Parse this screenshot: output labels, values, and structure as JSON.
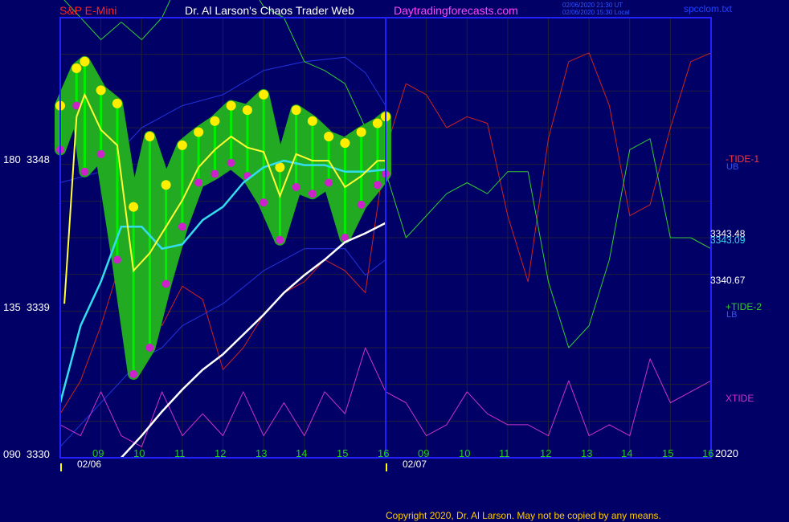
{
  "header": {
    "symbol": "S&P E-Mini",
    "title": "Dr. Al Larson's Chaos Trader Web",
    "site": "Daytradingforecasts.com",
    "stamp_ut": "02/06/2020 21:30 UT",
    "stamp_local": "02/06/2020 15:30 Local",
    "file": "spcclom.txt"
  },
  "y_axis": {
    "top": {
      "angle": "180",
      "price": "3348"
    },
    "mid": {
      "angle": "135",
      "price": "3339"
    },
    "bottom": {
      "angle": "090",
      "price": "3330"
    }
  },
  "right_labels": {
    "tide1": "-TIDE-1",
    "ub": "UB",
    "price1": "3343.48",
    "price2": "3343.09",
    "price3": "3340.67",
    "tide2": "+TIDE-2",
    "lb": "LB",
    "xtide": "XTIDE"
  },
  "x_axis": {
    "hours": [
      "09",
      "10",
      "11",
      "12",
      "13",
      "14",
      "15",
      "16",
      "09",
      "10",
      "11",
      "12",
      "13",
      "14",
      "15",
      "16"
    ],
    "dates": [
      "02/06",
      "02/07"
    ],
    "year": "2020"
  },
  "copyright": "Copyright 2020, Dr. Al Larson. May not be copied by any means.",
  "chart_data": {
    "type": "line",
    "x_unit": "hour",
    "x_range": [
      8,
      24
    ],
    "ylim": [
      3330,
      3350
    ],
    "y_ticks": [
      3330,
      3339,
      3348
    ],
    "grid": true,
    "colors": {
      "background": "#000066",
      "grid": "#1f1f3a",
      "frame": "#2222ff",
      "price_band": "#22aa22",
      "price_bars": "#00ee00",
      "highs": "#ffee00",
      "lows": "#cc22cc",
      "fast_avg": "#ffff33",
      "slow_avg": "#33ddee",
      "long_avg": "#ffffff",
      "tide1": "#cc2222",
      "tide2": "#33cc33",
      "xtide": "#cc33cc",
      "bands": "#2233dd"
    },
    "series": [
      {
        "name": "-TIDE-1",
        "x": [
          8.0,
          8.5,
          9.0,
          9.5,
          10.0,
          10.5,
          11.0,
          11.5,
          12.0,
          12.5,
          13.0,
          13.5,
          14.0,
          14.5,
          15.0,
          15.5,
          16.0,
          16.5,
          17.0,
          17.5,
          18.0,
          18.5,
          19.0,
          19.5,
          20.0,
          20.5,
          21.0,
          21.5,
          22.0,
          22.5,
          23.0,
          23.5,
          24.0
        ],
        "y": [
          3332,
          3333.5,
          3336,
          3339,
          3338,
          3336,
          3337.8,
          3337.2,
          3334,
          3335,
          3336.5,
          3337.5,
          3338,
          3339,
          3338.5,
          3337.5,
          3344,
          3347,
          3346.5,
          3345,
          3345.5,
          3345.2,
          3341,
          3338,
          3344.5,
          3348,
          3348.4,
          3346,
          3341,
          3341.5,
          3345,
          3348,
          3348.4
        ]
      },
      {
        "name": "+TIDE-2",
        "x": [
          8.0,
          8.5,
          9.0,
          9.5,
          10.0,
          10.5,
          11.0,
          11.5,
          12.0,
          12.5,
          13.0,
          13.5,
          14.0,
          14.5,
          15.0,
          15.5,
          16.0,
          16.5,
          17.0,
          17.5,
          18.0,
          18.5,
          19.0,
          19.5,
          20.0,
          20.5,
          21.0,
          21.5,
          22.0,
          22.5,
          23.0,
          23.5,
          24.0
        ],
        "y": [
          3351,
          3350,
          3349,
          3349.8,
          3349,
          3350,
          3352,
          3355,
          3354,
          3352,
          3350.5,
          3350,
          3348,
          3347.6,
          3347,
          3345,
          3343,
          3340,
          3341,
          3342,
          3342.5,
          3342,
          3343,
          3343,
          3338,
          3335,
          3336,
          3339,
          3344,
          3344.5,
          3340,
          3340,
          3339.5
        ]
      },
      {
        "name": "XTIDE",
        "x": [
          8.0,
          8.5,
          9.0,
          9.5,
          10.0,
          10.5,
          11.0,
          11.5,
          12.0,
          12.5,
          13.0,
          13.5,
          14.0,
          14.5,
          15.0,
          15.5,
          16.0,
          16.5,
          17.0,
          17.5,
          18.0,
          18.5,
          19.0,
          19.5,
          20.0,
          20.5,
          21.0,
          21.5,
          22.0,
          22.5,
          23.0,
          23.5,
          24.0
        ],
        "y": [
          3331.5,
          3331,
          3333,
          3331,
          3330.5,
          3333,
          3331,
          3332,
          3331,
          3333,
          3331,
          3332.5,
          3331,
          3333,
          3332,
          3335,
          3333,
          3332.5,
          3331,
          3331.5,
          3333,
          3332,
          3331.5,
          3331.5,
          3331,
          3333.5,
          3331,
          3331.5,
          3331,
          3334.5,
          3332.5,
          3333,
          3333.5
        ]
      },
      {
        "name": "Price high",
        "x": [
          8.0,
          8.4,
          8.6,
          9.0,
          9.4,
          9.8,
          10.2,
          10.6,
          11.0,
          11.4,
          11.8,
          12.2,
          12.6,
          13.0,
          13.4,
          13.8,
          14.2,
          14.6,
          15.0,
          15.4,
          15.8,
          16.0
        ],
        "y": [
          3346,
          3347.7,
          3348,
          3346.7,
          3346.1,
          3341.4,
          3344.6,
          3342.4,
          3344.2,
          3344.8,
          3345.3,
          3346,
          3345.8,
          3346.5,
          3343.2,
          3345.8,
          3345.3,
          3344.6,
          3344.3,
          3344.8,
          3345.2,
          3345.5
        ]
      },
      {
        "name": "Price low",
        "x": [
          8.0,
          8.4,
          8.6,
          9.0,
          9.4,
          9.8,
          10.2,
          10.6,
          11.0,
          11.4,
          11.8,
          12.2,
          12.6,
          13.0,
          13.4,
          13.8,
          14.2,
          14.6,
          15.0,
          15.4,
          15.8,
          16.0
        ],
        "y": [
          3344,
          3346,
          3343,
          3343.8,
          3339,
          3333.8,
          3335,
          3337.9,
          3340.5,
          3342.5,
          3342.9,
          3343.4,
          3342.8,
          3341.6,
          3339.9,
          3342.3,
          3342,
          3342.5,
          3340,
          3341.5,
          3342.4,
          3342.9
        ]
      },
      {
        "name": "Fast average",
        "x": [
          8.1,
          8.4,
          8.6,
          9.0,
          9.4,
          9.8,
          10.2,
          10.6,
          11.0,
          11.4,
          11.8,
          12.2,
          12.6,
          13.0,
          13.4,
          13.8,
          14.2,
          14.6,
          15.0,
          15.4,
          15.8,
          16.0
        ],
        "y": [
          3337,
          3345.5,
          3346.5,
          3344.9,
          3344.2,
          3338.5,
          3339.3,
          3340.5,
          3341.7,
          3343.2,
          3344,
          3344.6,
          3344.1,
          3343.9,
          3341.9,
          3343.8,
          3343.5,
          3343.5,
          3342.3,
          3342.8,
          3343.5,
          3343.5
        ]
      },
      {
        "name": "Slow average",
        "x": [
          8.0,
          8.5,
          9.0,
          9.5,
          10.0,
          10.5,
          11.0,
          11.5,
          12.0,
          12.5,
          13.0,
          13.5,
          14.0,
          14.5,
          15.0,
          15.5,
          16.0
        ],
        "y": [
          3332.5,
          3336,
          3338,
          3340.5,
          3340.5,
          3339.5,
          3339.7,
          3340.8,
          3341.4,
          3342.5,
          3343.2,
          3343.5,
          3343.3,
          3343.3,
          3343,
          3343,
          3343.1
        ]
      },
      {
        "name": "Long average",
        "x": [
          9.5,
          10.0,
          10.5,
          11.0,
          11.5,
          12.0,
          12.5,
          13.0,
          13.5,
          14.0,
          14.5,
          15.0,
          15.5,
          16.0
        ],
        "y": [
          3330,
          3331,
          3332.1,
          3333.1,
          3334,
          3334.7,
          3335.6,
          3336.5,
          3337.5,
          3338.3,
          3339,
          3339.8,
          3340.2,
          3340.67
        ]
      },
      {
        "name": "UB",
        "x": [
          8.0,
          9.0,
          10.0,
          10.5,
          11.0,
          12.0,
          13.0,
          14.0,
          15.0,
          15.5,
          16.0
        ],
        "y": [
          3342.5,
          3343,
          3345,
          3345.5,
          3346,
          3346.5,
          3347.6,
          3348,
          3348.2,
          3347.5,
          3346
        ]
      },
      {
        "name": "LB",
        "x": [
          8.0,
          9.0,
          10.0,
          10.5,
          11.0,
          12.0,
          13.0,
          14.0,
          15.0,
          15.5,
          16.0
        ],
        "y": [
          3330.5,
          3332.5,
          3334.5,
          3335,
          3336,
          3337,
          3338.5,
          3339.5,
          3339.5,
          3338.3,
          3339
        ]
      }
    ]
  }
}
